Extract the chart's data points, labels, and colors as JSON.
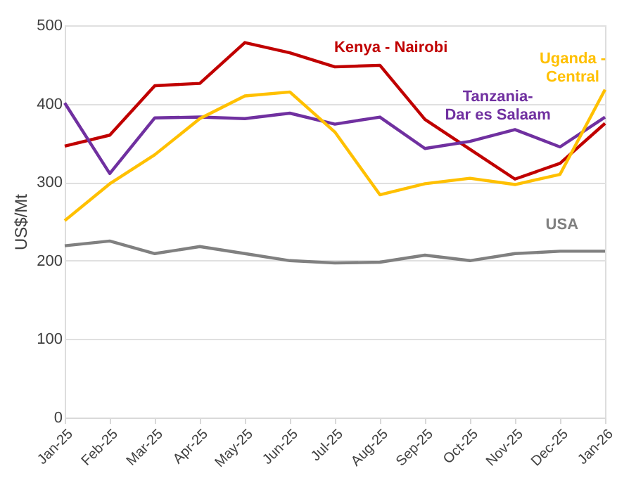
{
  "chart_data": {
    "type": "line",
    "ylabel": "US$/Mt",
    "categories": [
      "Jan-25",
      "Feb-25",
      "Mar-25",
      "Apr-25",
      "May-25",
      "Jun-25",
      "Jul-25",
      "Aug-25",
      "Sep-25",
      "Oct-25",
      "Nov-25",
      "Dec-25",
      "Jan-26"
    ],
    "series": [
      {
        "color": "#c00000",
        "values": [
          346,
          360,
          423,
          426,
          478,
          465,
          447,
          449,
          380,
          342,
          304,
          324,
          375
        ]
      },
      {
        "color": "#7030a0",
        "values": [
          401,
          311,
          382,
          383,
          381,
          388,
          374,
          383,
          343,
          352,
          367,
          345,
          383
        ]
      },
      {
        "color": "#ffc000",
        "values": [
          251,
          298,
          335,
          381,
          410,
          415,
          364,
          284,
          298,
          305,
          297,
          310,
          418
        ]
      },
      {
        "color": "#808080",
        "values": [
          219,
          225,
          209,
          218,
          209,
          200,
          197,
          198,
          207,
          200,
          209,
          212,
          212
        ]
      }
    ],
    "annotations": [
      "Kenya - Nairobi",
      "Tanzania-\nDar es Salaam",
      "Uganda -\nCentral",
      "USA"
    ],
    "ylim": [
      0,
      500
    ],
    "yticks": [
      0,
      100,
      200,
      300,
      400,
      500
    ],
    "grid": "y",
    "marker": "none",
    "line_style": "solid"
  }
}
